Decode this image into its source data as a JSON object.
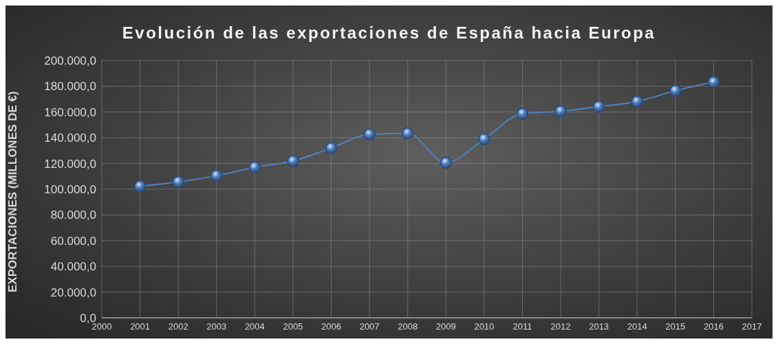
{
  "chart_data": {
    "type": "line",
    "title": "Evolución de las exportaciones de España hacia Europa",
    "ylabel": "EXPORTACIONES (MILLONES DE €)",
    "x": [
      2001,
      2002,
      2003,
      2004,
      2005,
      2006,
      2007,
      2008,
      2009,
      2010,
      2011,
      2012,
      2013,
      2014,
      2015,
      2016
    ],
    "series": [
      {
        "color": "#4f81bd",
        "values": [
          102300,
          105700,
          110500,
          117100,
          121900,
          132000,
          142700,
          143400,
          120600,
          139000,
          158700,
          160600,
          164200,
          168200,
          176600,
          183300
        ]
      }
    ],
    "xlim": [
      2000,
      2017
    ],
    "xticks": [
      2000,
      2001,
      2002,
      2003,
      2004,
      2005,
      2006,
      2007,
      2008,
      2009,
      2010,
      2011,
      2012,
      2013,
      2014,
      2015,
      2016,
      2017
    ],
    "ylim": [
      0,
      200000
    ],
    "yticks": [
      {
        "value": 0,
        "label": "0,0"
      },
      {
        "value": 20000,
        "label": "20.000,0"
      },
      {
        "value": 40000,
        "label": "40.000,0"
      },
      {
        "value": 60000,
        "label": "60.000,0"
      },
      {
        "value": 80000,
        "label": "80.000,0"
      },
      {
        "value": 100000,
        "label": "100.000,0"
      },
      {
        "value": 120000,
        "label": "120.000,0"
      },
      {
        "value": 140000,
        "label": "140.000,0"
      },
      {
        "value": 160000,
        "label": "160.000,0"
      },
      {
        "value": 180000,
        "label": "180.000,0"
      },
      {
        "value": 200000,
        "label": "200.000,0"
      }
    ],
    "grid": true,
    "marker": "circle",
    "line_style": "solid",
    "legend": false
  }
}
